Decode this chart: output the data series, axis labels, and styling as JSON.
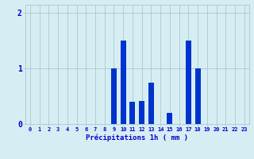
{
  "hours": [
    0,
    1,
    2,
    3,
    4,
    5,
    6,
    7,
    8,
    9,
    10,
    11,
    12,
    13,
    14,
    15,
    16,
    17,
    18,
    19,
    20,
    21,
    22,
    23
  ],
  "values": [
    0,
    0,
    0,
    0,
    0,
    0,
    0,
    0,
    0,
    1.0,
    1.5,
    0.4,
    0.42,
    0.75,
    0,
    0.2,
    0,
    1.5,
    1.0,
    0,
    0,
    0,
    0,
    0
  ],
  "bar_color": "#0033cc",
  "background_color": "#d6eef3",
  "grid_color": "#aac8cc",
  "xlabel": "Précipitations 1h ( mm )",
  "xlabel_color": "#0000cc",
  "tick_color": "#0000cc",
  "ylim": [
    0,
    2.15
  ],
  "yticks": [
    0,
    1,
    2
  ],
  "xlim": [
    -0.5,
    23.5
  ],
  "bar_width": 0.6
}
